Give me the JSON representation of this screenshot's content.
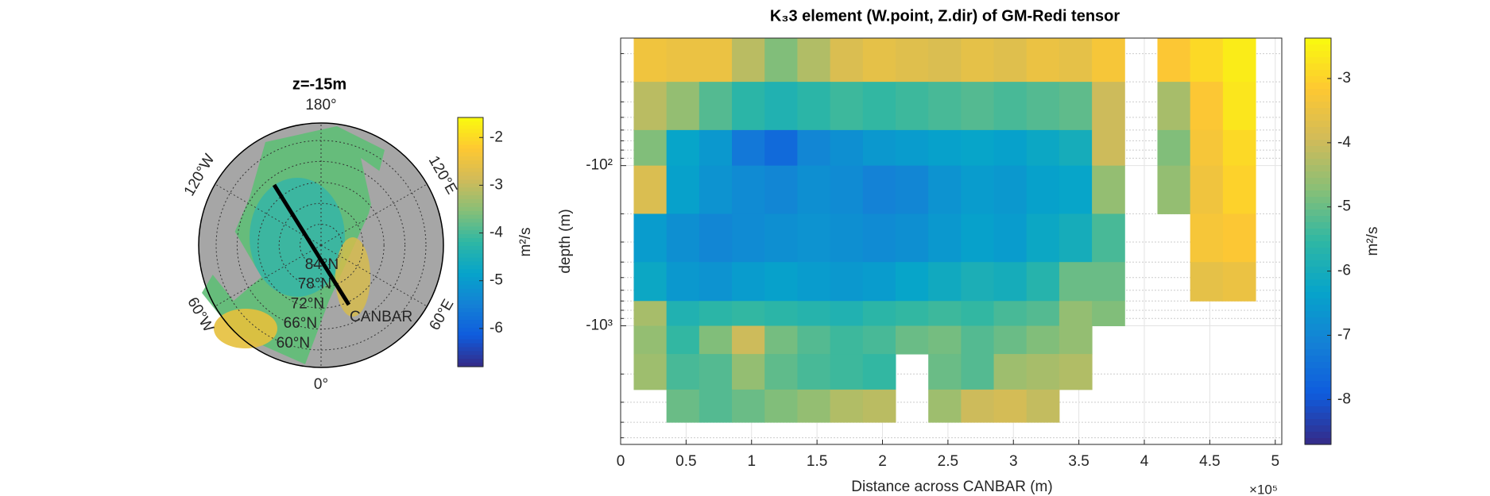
{
  "chart_data": [
    {
      "type": "polar-map",
      "title": "z=-15m",
      "lat_min": 55,
      "lon_ticks": [
        {
          "value": 180,
          "label": "180°"
        },
        {
          "value": 120,
          "label": "120°E"
        },
        {
          "value": 60,
          "label": "60°E"
        },
        {
          "value": 0,
          "label": "0°"
        },
        {
          "value": -60,
          "label": "60°W"
        },
        {
          "value": -120,
          "label": "120°W"
        }
      ],
      "lat_ticks": [
        {
          "value": 84,
          "label": "84°N"
        },
        {
          "value": 78,
          "label": "78°N"
        },
        {
          "value": 72,
          "label": "72°N"
        },
        {
          "value": 66,
          "label": "66°N"
        },
        {
          "value": 60,
          "label": "60°N"
        }
      ],
      "section_label": "CANBAR",
      "colorbar": {
        "label": "m²/s",
        "clim": [
          -6.8,
          -1.58
        ],
        "ticks": [
          -6,
          -5,
          -4,
          -3,
          -2
        ]
      }
    },
    {
      "type": "heatmap",
      "title": "K₃3 element (W.point, Z.dir) of GM-Redi tensor",
      "xlabel": "Distance across CANBAR (m)",
      "ylabel": "depth (m)",
      "x_exponent": "×10⁵",
      "xlim": [
        0,
        5.05
      ],
      "xticks": [
        0,
        0.5,
        1,
        1.5,
        2,
        2.5,
        3,
        3.5,
        4,
        4.5,
        5
      ],
      "ylim": [
        -16,
        -5500
      ],
      "log": true,
      "grid": true,
      "yticks": [
        {
          "value": -100,
          "label": "-10²"
        },
        {
          "value": -1000,
          "label": "-10³"
        }
      ],
      "minor_yticks": [
        -20,
        -30,
        -40,
        -50,
        -60,
        -70,
        -80,
        -90,
        -200,
        -300,
        -400,
        -500,
        -600,
        -700,
        -800,
        -900,
        -2000,
        -3000,
        -4000,
        -5000
      ],
      "x_bins": [
        0.1,
        0.35,
        0.6,
        0.85,
        1.1,
        1.35,
        1.6,
        1.85,
        2.1,
        2.35,
        2.6,
        2.85,
        3.1,
        3.35,
        3.6,
        3.85,
        4.1,
        4.35,
        4.6,
        4.85
      ],
      "depth_bins": [
        -16,
        -30,
        -60,
        -100,
        -200,
        -400,
        -700,
        -1000,
        -1500,
        -2500,
        -4000
      ],
      "values": [
        [
          -3.4,
          -3.5,
          -3.5,
          -4.2,
          -4.8,
          -4.3,
          -3.8,
          -3.6,
          -3.7,
          -3.8,
          -3.6,
          -3.7,
          -3.5,
          -3.6,
          -3.3,
          null,
          -3.2,
          -2.9,
          -2.6
        ],
        [
          -4.2,
          -4.6,
          -5.2,
          -5.6,
          -5.8,
          -5.6,
          -5.4,
          -5.5,
          -5.4,
          -5.3,
          -5.2,
          -5.3,
          -5.2,
          -5.1,
          -4.0,
          null,
          -4.4,
          -3.2,
          -2.7
        ],
        [
          -4.8,
          -6.3,
          -6.6,
          -7.3,
          -7.6,
          -7.0,
          -6.8,
          -6.6,
          -6.5,
          -6.4,
          -6.3,
          -6.4,
          -6.2,
          -6.0,
          -4.0,
          null,
          -4.8,
          -3.3,
          -2.9
        ],
        [
          -3.8,
          -6.4,
          -6.7,
          -6.9,
          -7.0,
          -6.8,
          -6.9,
          -7.1,
          -7.0,
          -6.7,
          -6.5,
          -6.6,
          -6.4,
          -6.3,
          -4.6,
          null,
          -4.6,
          -3.4,
          -3.0
        ],
        [
          -6.5,
          -6.8,
          -7.0,
          -6.9,
          -6.8,
          -6.7,
          -6.8,
          -6.9,
          -6.8,
          -6.6,
          -6.4,
          -6.5,
          -6.2,
          -6.0,
          -5.3,
          null,
          null,
          -3.3,
          -3.2
        ],
        [
          -6.2,
          -6.6,
          -6.7,
          -6.5,
          -6.4,
          -6.5,
          -6.6,
          -6.5,
          -6.3,
          -6.1,
          -5.9,
          -6.0,
          -5.7,
          -5.0,
          -5.0,
          null,
          null,
          -3.6,
          -3.5
        ],
        [
          -4.4,
          -5.8,
          -5.6,
          -5.5,
          -5.6,
          -5.7,
          -5.8,
          -5.6,
          -5.5,
          -5.4,
          -5.5,
          -5.3,
          -5.2,
          -4.6,
          -4.8,
          null,
          null,
          null,
          null
        ],
        [
          -4.6,
          -5.5,
          -4.8,
          -4.0,
          -4.9,
          -5.2,
          -5.4,
          -5.3,
          -5.0,
          -4.9,
          -5.2,
          -5.0,
          -4.8,
          -4.6,
          null,
          null,
          null,
          null,
          null
        ],
        [
          -4.5,
          -5.3,
          -5.2,
          -4.6,
          -5.1,
          -5.3,
          -5.4,
          -5.5,
          null,
          -5.0,
          -5.2,
          -4.5,
          -4.4,
          -4.3,
          null,
          null,
          null,
          null,
          null
        ],
        [
          null,
          -5.0,
          -5.2,
          -5.0,
          -4.8,
          -4.6,
          -4.3,
          -4.2,
          null,
          -4.5,
          -4.0,
          -3.9,
          -4.1,
          null,
          null,
          null,
          null,
          null,
          null
        ]
      ],
      "colormap": [
        "#352a87",
        "#0f5cdd",
        "#1481d6",
        "#06a4ca",
        "#2eb7a4",
        "#87bf77",
        "#d1bb59",
        "#fec832",
        "#f9fb0e"
      ],
      "colorbar": {
        "label": "m²/s",
        "clim": [
          -8.7,
          -2.37
        ],
        "ticks": [
          -8,
          -7,
          -6,
          -5,
          -4,
          -3
        ]
      }
    }
  ]
}
